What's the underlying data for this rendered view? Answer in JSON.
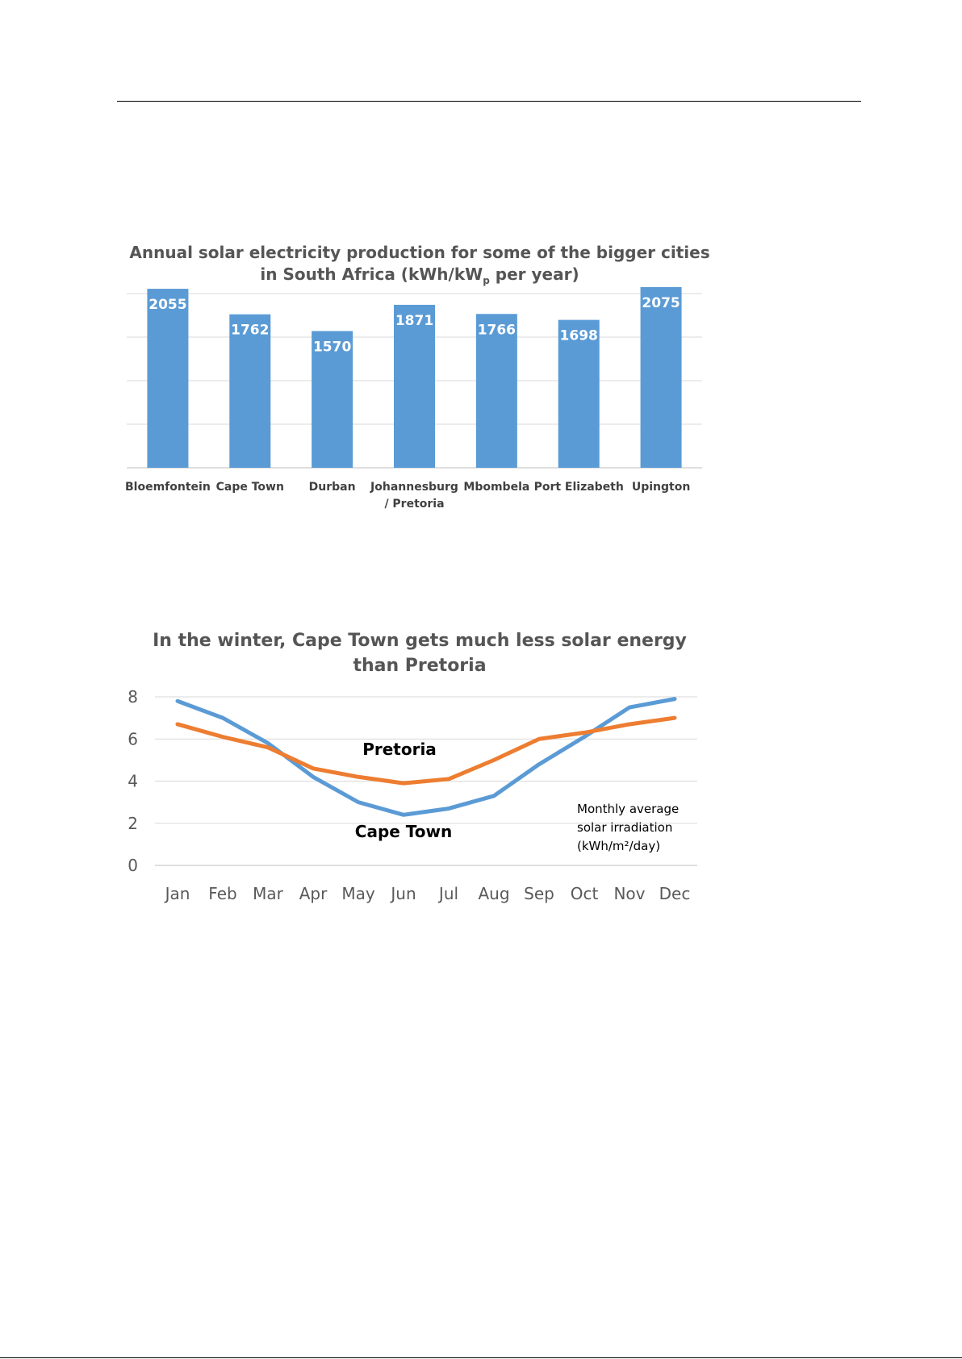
{
  "charts": {
    "bar": {
      "title_line1": "Annual solar electricity production for some of the bigger cities",
      "title_line2_pre": "in South Africa (kWh/kW",
      "title_line2_sub": "p",
      "title_line2_post": " per year)"
    },
    "line": {
      "title_line1": "In the winter, Cape Town gets much less solar energy",
      "title_line2": "than Pretoria",
      "annotation": [
        "Monthly  average",
        "solar irradiation",
        "(kWh/m²/day)"
      ]
    }
  },
  "chart_data": [
    {
      "type": "bar",
      "title": "Annual solar electricity production for some of the bigger cities in South Africa (kWh/kWp per year)",
      "categories": [
        [
          "Bloemfontein"
        ],
        [
          "Cape Town"
        ],
        [
          "Durban"
        ],
        [
          "Johannesburg",
          "/ Pretoria"
        ],
        [
          "Mbombela"
        ],
        [
          "Port Elizabeth"
        ],
        [
          "Upington"
        ]
      ],
      "values": [
        2055,
        1762,
        1570,
        1871,
        1766,
        1698,
        2075
      ],
      "ylim": [
        0,
        2000
      ],
      "grid": true,
      "bar_color": "#5B9BD5"
    },
    {
      "type": "line",
      "title": "In the winter, Cape Town gets much less solar energy than Pretoria",
      "categories": [
        "Jan",
        "Feb",
        "Mar",
        "Apr",
        "May",
        "Jun",
        "Jul",
        "Aug",
        "Sep",
        "Oct",
        "Nov",
        "Dec"
      ],
      "yticks": [
        "0",
        "2",
        "4",
        "6",
        "8"
      ],
      "ylim": [
        0,
        8
      ],
      "grid": true,
      "series": [
        {
          "name": "Cape Town",
          "color": "#5B9BD5",
          "values": [
            7.8,
            7.0,
            5.8,
            4.2,
            3.0,
            2.4,
            2.7,
            3.3,
            4.8,
            6.1,
            7.5,
            7.9
          ]
        },
        {
          "name": "Pretoria",
          "color": "#ED7D31",
          "values": [
            6.7,
            6.1,
            5.6,
            4.6,
            4.2,
            3.9,
            4.1,
            5.0,
            6.0,
            6.3,
            6.7,
            7.0
          ]
        }
      ]
    }
  ]
}
